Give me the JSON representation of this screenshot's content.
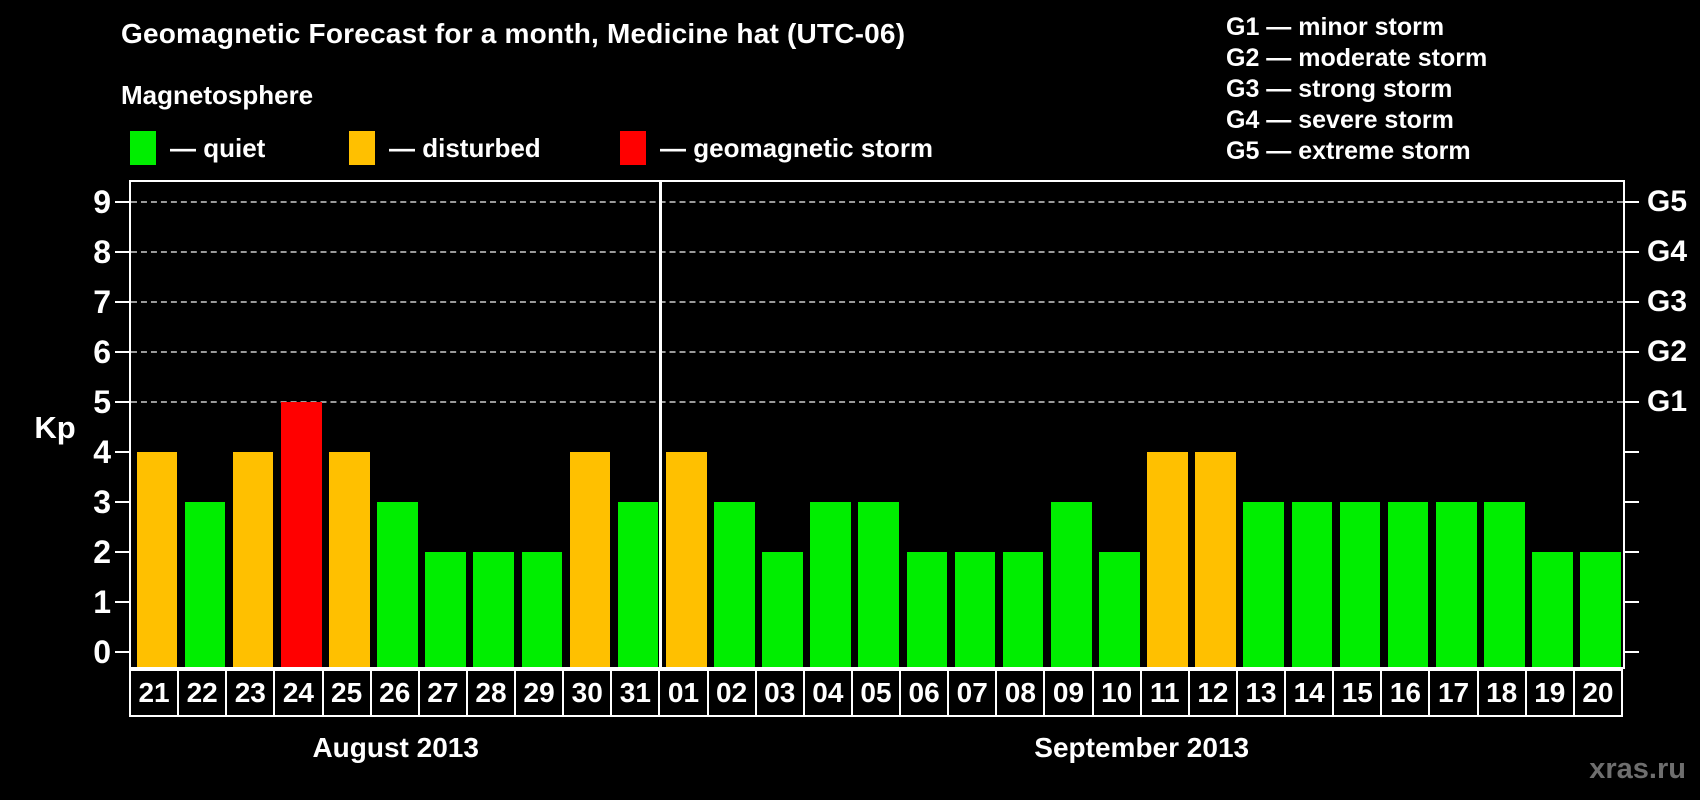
{
  "title": "Geomagnetic Forecast for a month, Medicine hat (UTC-06)",
  "subtitle": "Magnetosphere",
  "legend": {
    "quiet": {
      "label": "— quiet"
    },
    "disturbed": {
      "label": "— disturbed"
    },
    "storm": {
      "label": "— geomagnetic storm"
    }
  },
  "g_scale_legend": [
    "G1 — minor storm",
    "G2 — moderate storm",
    "G3 — strong storm",
    "G4 — severe storm",
    "G5 — extreme storm"
  ],
  "watermark": "xras.ru",
  "chart_data": {
    "type": "bar",
    "title": "Geomagnetic Forecast for a month, Medicine hat (UTC-06)",
    "ylabel": "Kp",
    "ylim": [
      0,
      9
    ],
    "y_ticks": [
      0,
      1,
      2,
      3,
      4,
      5,
      6,
      7,
      8,
      9
    ],
    "gridlines_at_kp": [
      5,
      6,
      7,
      8,
      9
    ],
    "grid": "dashed",
    "right_axis": [
      {
        "kp": 5,
        "label": "G1"
      },
      {
        "kp": 6,
        "label": "G2"
      },
      {
        "kp": 7,
        "label": "G3"
      },
      {
        "kp": 8,
        "label": "G4"
      },
      {
        "kp": 9,
        "label": "G5"
      }
    ],
    "colors": {
      "quiet": "#00ee00",
      "disturbed": "#ffc000",
      "storm": "#ff0000",
      "background": "#000000",
      "axis": "#ffffff",
      "gridline": "#9a9a9a"
    },
    "months": [
      {
        "label": "August 2013",
        "days": [
          {
            "day": "21",
            "kp": 4,
            "status": "disturbed"
          },
          {
            "day": "22",
            "kp": 3,
            "status": "quiet"
          },
          {
            "day": "23",
            "kp": 4,
            "status": "disturbed"
          },
          {
            "day": "24",
            "kp": 5,
            "status": "storm"
          },
          {
            "day": "25",
            "kp": 4,
            "status": "disturbed"
          },
          {
            "day": "26",
            "kp": 3,
            "status": "quiet"
          },
          {
            "day": "27",
            "kp": 2,
            "status": "quiet"
          },
          {
            "day": "28",
            "kp": 2,
            "status": "quiet"
          },
          {
            "day": "29",
            "kp": 2,
            "status": "quiet"
          },
          {
            "day": "30",
            "kp": 4,
            "status": "disturbed"
          },
          {
            "day": "31",
            "kp": 3,
            "status": "quiet"
          }
        ]
      },
      {
        "label": "September 2013",
        "days": [
          {
            "day": "01",
            "kp": 4,
            "status": "disturbed"
          },
          {
            "day": "02",
            "kp": 3,
            "status": "quiet"
          },
          {
            "day": "03",
            "kp": 2,
            "status": "quiet"
          },
          {
            "day": "04",
            "kp": 3,
            "status": "quiet"
          },
          {
            "day": "05",
            "kp": 3,
            "status": "quiet"
          },
          {
            "day": "06",
            "kp": 2,
            "status": "quiet"
          },
          {
            "day": "07",
            "kp": 2,
            "status": "quiet"
          },
          {
            "day": "08",
            "kp": 2,
            "status": "quiet"
          },
          {
            "day": "09",
            "kp": 3,
            "status": "quiet"
          },
          {
            "day": "10",
            "kp": 2,
            "status": "quiet"
          },
          {
            "day": "11",
            "kp": 4,
            "status": "disturbed"
          },
          {
            "day": "12",
            "kp": 4,
            "status": "disturbed"
          },
          {
            "day": "13",
            "kp": 3,
            "status": "quiet"
          },
          {
            "day": "14",
            "kp": 3,
            "status": "quiet"
          },
          {
            "day": "15",
            "kp": 3,
            "status": "quiet"
          },
          {
            "day": "16",
            "kp": 3,
            "status": "quiet"
          },
          {
            "day": "17",
            "kp": 3,
            "status": "quiet"
          },
          {
            "day": "18",
            "kp": 3,
            "status": "quiet"
          },
          {
            "day": "19",
            "kp": 2,
            "status": "quiet"
          },
          {
            "day": "20",
            "kp": 2,
            "status": "quiet"
          }
        ]
      }
    ]
  }
}
